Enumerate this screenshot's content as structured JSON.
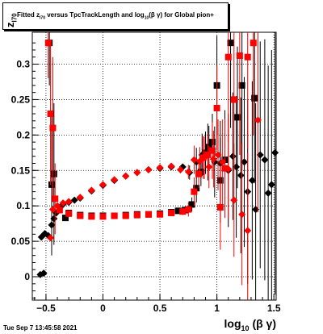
{
  "title": {
    "prefix": "Fitted  z",
    "sub1": "I70",
    "mid": "  versus  TpcTrackLength and log",
    "sub2": "10",
    "suffix": "(β  γ) for Global pion+"
  },
  "ylabel": {
    "main": "z",
    "sub": "I70"
  },
  "xlabel": {
    "main": "log",
    "sub": "10",
    "suffix": " (β γ)"
  },
  "datestamp": "Tue Sep  7 13:45:58 2021",
  "chart_data": {
    "type": "scatter",
    "xlim": [
      -0.62,
      1.52
    ],
    "ylim": [
      -0.033,
      0.345
    ],
    "xticks": [
      -0.5,
      0,
      0.5,
      1,
      1.5
    ],
    "xtick_labels": [
      "−0.5",
      "0",
      "0.5",
      "1",
      "1.5"
    ],
    "yticks": [
      0,
      0.05,
      0.1,
      0.15,
      0.2,
      0.25,
      0.3
    ],
    "ytick_labels": [
      "0",
      "0.05",
      "0.1",
      "0.15",
      "0.2",
      "0.25",
      "0.3"
    ],
    "grid": true,
    "series": [
      {
        "color": "#000000",
        "marker": "diamond",
        "points": [
          {
            "x": -0.55,
            "y": 0.003,
            "e": 0.0
          },
          {
            "x": -0.52,
            "y": 0.005,
            "e": 0.0
          },
          {
            "x": -0.54,
            "y": 0.056,
            "e": 0.0
          },
          {
            "x": -0.51,
            "y": 0.061,
            "e": 0.0
          },
          {
            "x": -0.48,
            "y": 0.058,
            "e": 0.0
          },
          {
            "x": -0.45,
            "y": 0.073,
            "e": 0.0
          },
          {
            "x": -0.43,
            "y": 0.082,
            "e": 0.0
          },
          {
            "x": -0.41,
            "y": 0.09,
            "e": 0.0
          },
          {
            "x": -0.38,
            "y": 0.097,
            "e": 0.0
          },
          {
            "x": -0.35,
            "y": 0.102,
            "e": 0.0
          },
          {
            "x": -0.3,
            "y": 0.105,
            "e": 0.0
          },
          {
            "x": -0.25,
            "y": 0.108,
            "e": 0.0
          },
          {
            "x": -0.2,
            "y": 0.111,
            "e": 0.0
          },
          {
            "x": -0.1,
            "y": 0.121,
            "e": 0.0
          },
          {
            "x": 0.0,
            "y": 0.129,
            "e": 0.0
          },
          {
            "x": 0.1,
            "y": 0.136,
            "e": 0.0
          },
          {
            "x": 0.2,
            "y": 0.142,
            "e": 0.0
          },
          {
            "x": 0.3,
            "y": 0.147,
            "e": 0.0
          },
          {
            "x": 0.4,
            "y": 0.151,
            "e": 0.0
          },
          {
            "x": 0.5,
            "y": 0.153,
            "e": 0.0
          },
          {
            "x": 0.6,
            "y": 0.155,
            "e": 0.0
          },
          {
            "x": 0.7,
            "y": 0.155,
            "e": 0.0
          },
          {
            "x": 0.76,
            "y": 0.147,
            "e": 0.01
          },
          {
            "x": 0.82,
            "y": 0.162,
            "e": 0.02
          },
          {
            "x": 0.87,
            "y": 0.172,
            "e": 0.03
          },
          {
            "x": 0.92,
            "y": 0.176,
            "e": 0.04
          },
          {
            "x": 0.98,
            "y": 0.162,
            "e": 0.05
          },
          {
            "x": 1.03,
            "y": 0.16,
            "e": 0.06
          },
          {
            "x": 1.07,
            "y": 0.165,
            "e": 0.07
          },
          {
            "x": 1.1,
            "y": 0.15,
            "e": 0.08
          },
          {
            "x": 1.14,
            "y": 0.17,
            "e": 0.09
          },
          {
            "x": 1.17,
            "y": 0.155,
            "e": 0.1
          },
          {
            "x": 1.21,
            "y": 0.143,
            "e": 0.11
          },
          {
            "x": 1.24,
            "y": 0.162,
            "e": 0.12
          },
          {
            "x": 1.27,
            "y": 0.12,
            "e": 0.13
          },
          {
            "x": 1.31,
            "y": 0.136,
            "e": 0.14
          },
          {
            "x": 1.34,
            "y": 0.095,
            "e": 0.15
          },
          {
            "x": 1.38,
            "y": 0.172,
            "e": 0.16
          },
          {
            "x": 1.42,
            "y": 0.165,
            "e": 0.17
          },
          {
            "x": 1.45,
            "y": 0.118,
            "e": 0.18
          },
          {
            "x": 1.48,
            "y": 0.13,
            "e": 0.19
          },
          {
            "x": 1.51,
            "y": 0.175,
            "e": 0.2
          }
        ]
      },
      {
        "color": "#000000",
        "marker": "square",
        "points": [
          {
            "x": -0.47,
            "y": 0.33,
            "e": 0.06
          },
          {
            "x": -0.45,
            "y": 0.13,
            "e": 0.1
          },
          {
            "x": -0.43,
            "y": 0.145,
            "e": 0.1
          },
          {
            "x": -0.33,
            "y": 0.083,
            "e": 0.0
          },
          {
            "x": -0.3,
            "y": 0.09,
            "e": 0.0
          },
          {
            "x": -0.2,
            "y": 0.087,
            "e": 0.0
          },
          {
            "x": -0.1,
            "y": 0.086,
            "e": 0.0
          },
          {
            "x": 0.0,
            "y": 0.086,
            "e": 0.0
          },
          {
            "x": 0.1,
            "y": 0.086,
            "e": 0.0
          },
          {
            "x": 0.2,
            "y": 0.087,
            "e": 0.0
          },
          {
            "x": 0.3,
            "y": 0.088,
            "e": 0.0
          },
          {
            "x": 0.4,
            "y": 0.088,
            "e": 0.0
          },
          {
            "x": 0.5,
            "y": 0.089,
            "e": 0.0
          },
          {
            "x": 0.6,
            "y": 0.091,
            "e": 0.0
          },
          {
            "x": 0.66,
            "y": 0.093,
            "e": 0.0
          },
          {
            "x": 0.72,
            "y": 0.094,
            "e": 0.005
          },
          {
            "x": 0.78,
            "y": 0.102,
            "e": 0.01
          },
          {
            "x": 0.82,
            "y": 0.125,
            "e": 0.02
          },
          {
            "x": 0.86,
            "y": 0.148,
            "e": 0.02
          },
          {
            "x": 0.9,
            "y": 0.175,
            "e": 0.03
          },
          {
            "x": 0.93,
            "y": 0.183,
            "e": 0.03
          },
          {
            "x": 0.96,
            "y": 0.19,
            "e": 0.04
          },
          {
            "x": 1.0,
            "y": 0.27,
            "e": 0.07
          },
          {
            "x": 1.03,
            "y": 0.136,
            "e": 0.06
          },
          {
            "x": 1.07,
            "y": 0.165,
            "e": 0.07
          },
          {
            "x": 1.12,
            "y": 0.33,
            "e": 0.12
          },
          {
            "x": 1.18,
            "y": 0.225,
            "e": 0.1
          },
          {
            "x": 1.22,
            "y": 0.27,
            "e": 0.12
          },
          {
            "x": 1.33,
            "y": 0.252,
            "e": 0.12
          }
        ]
      },
      {
        "color": "#ff0000",
        "marker": "diamond",
        "points": [
          {
            "x": -0.44,
            "y": 0.095,
            "e": 0.0
          },
          {
            "x": -0.4,
            "y": 0.1,
            "e": 0.0
          },
          {
            "x": -0.35,
            "y": 0.104,
            "e": 0.0
          },
          {
            "x": -0.3,
            "y": 0.106,
            "e": 0.0
          },
          {
            "x": -0.2,
            "y": 0.112,
            "e": 0.0
          },
          {
            "x": -0.1,
            "y": 0.122,
            "e": 0.0
          },
          {
            "x": 0.0,
            "y": 0.13,
            "e": 0.0
          },
          {
            "x": 0.1,
            "y": 0.137,
            "e": 0.0
          },
          {
            "x": 0.2,
            "y": 0.142,
            "e": 0.0
          },
          {
            "x": 0.3,
            "y": 0.147,
            "e": 0.0
          },
          {
            "x": 0.4,
            "y": 0.151,
            "e": 0.0
          },
          {
            "x": 0.5,
            "y": 0.154,
            "e": 0.0
          },
          {
            "x": 0.6,
            "y": 0.156,
            "e": 0.0
          },
          {
            "x": 0.68,
            "y": 0.151,
            "e": 0.005
          },
          {
            "x": 0.75,
            "y": 0.148,
            "e": 0.01
          },
          {
            "x": 0.8,
            "y": 0.165,
            "e": 0.02
          },
          {
            "x": 0.85,
            "y": 0.163,
            "e": 0.02
          },
          {
            "x": 0.89,
            "y": 0.168,
            "e": 0.03
          },
          {
            "x": 0.93,
            "y": 0.155,
            "e": 0.03
          },
          {
            "x": 0.97,
            "y": 0.166,
            "e": 0.04
          },
          {
            "x": 1.01,
            "y": 0.172,
            "e": 0.05
          },
          {
            "x": 1.05,
            "y": 0.162,
            "e": 0.06
          },
          {
            "x": 1.1,
            "y": 0.152,
            "e": 0.07
          },
          {
            "x": 1.15,
            "y": 0.108,
            "e": 0.08
          },
          {
            "x": 1.22,
            "y": 0.088,
            "e": 0.1
          },
          {
            "x": 1.27,
            "y": 0.065,
            "e": 0.11
          },
          {
            "x": 1.36,
            "y": 0.221,
            "e": 0.13
          },
          {
            "x": -0.46,
            "y": 0.055,
            "e": 0.0
          }
        ]
      },
      {
        "color": "#ff0000",
        "marker": "square",
        "points": [
          {
            "x": -0.48,
            "y": 0.33,
            "e": 0.05
          },
          {
            "x": -0.46,
            "y": 0.23,
            "e": 0.1
          },
          {
            "x": -0.44,
            "y": 0.21,
            "e": 0.1
          },
          {
            "x": -0.42,
            "y": 0.11,
            "e": 0.05
          },
          {
            "x": -0.38,
            "y": 0.094,
            "e": 0.0
          },
          {
            "x": -0.3,
            "y": 0.089,
            "e": 0.0
          },
          {
            "x": -0.2,
            "y": 0.086,
            "e": 0.0
          },
          {
            "x": -0.1,
            "y": 0.085,
            "e": 0.0
          },
          {
            "x": 0.0,
            "y": 0.085,
            "e": 0.0
          },
          {
            "x": 0.1,
            "y": 0.086,
            "e": 0.0
          },
          {
            "x": 0.2,
            "y": 0.086,
            "e": 0.0
          },
          {
            "x": 0.3,
            "y": 0.087,
            "e": 0.0
          },
          {
            "x": 0.4,
            "y": 0.088,
            "e": 0.0
          },
          {
            "x": 0.5,
            "y": 0.088,
            "e": 0.0
          },
          {
            "x": 0.6,
            "y": 0.09,
            "e": 0.0
          },
          {
            "x": 0.7,
            "y": 0.092,
            "e": 0.005
          },
          {
            "x": 0.75,
            "y": 0.095,
            "e": 0.01
          },
          {
            "x": 0.8,
            "y": 0.12,
            "e": 0.02
          },
          {
            "x": 0.84,
            "y": 0.145,
            "e": 0.02
          },
          {
            "x": 0.88,
            "y": 0.168,
            "e": 0.03
          },
          {
            "x": 0.92,
            "y": 0.172,
            "e": 0.03
          },
          {
            "x": 0.96,
            "y": 0.178,
            "e": 0.04
          },
          {
            "x": 1.0,
            "y": 0.238,
            "e": 0.06
          },
          {
            "x": 1.03,
            "y": 0.098,
            "e": 0.06
          },
          {
            "x": 1.07,
            "y": 0.153,
            "e": 0.07
          },
          {
            "x": 1.1,
            "y": 0.31,
            "e": 0.12
          },
          {
            "x": 1.15,
            "y": 0.25,
            "e": 0.1
          },
          {
            "x": 1.2,
            "y": 0.312,
            "e": 0.14
          },
          {
            "x": 1.27,
            "y": 0.31,
            "e": 0.13
          },
          {
            "x": 1.32,
            "y": 0.33,
            "e": 0.13
          }
        ]
      }
    ]
  }
}
